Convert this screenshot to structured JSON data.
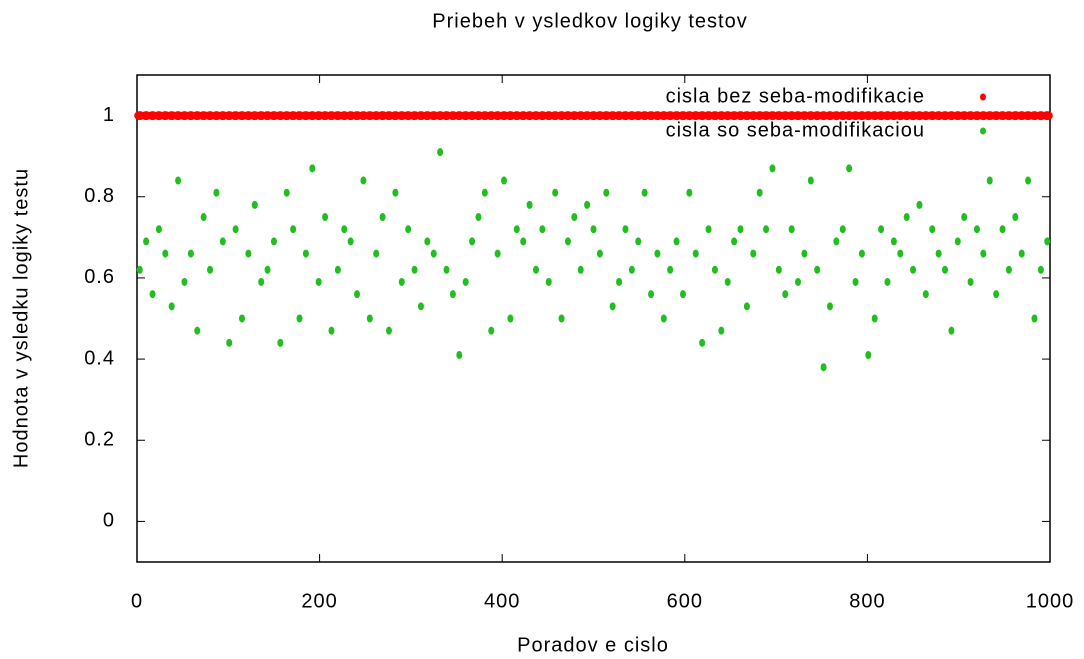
{
  "chart_data": {
    "type": "scatter",
    "title": "Priebeh v ysledkov logiky testov",
    "x_label": "Poradov e cislo",
    "y_label": "Hodnota v ysledku logiky testu",
    "xlim": [
      0,
      1000
    ],
    "ylim": [
      -0.1,
      1.1
    ],
    "xticks": [
      0,
      200,
      400,
      600,
      800,
      1000
    ],
    "yticks": [
      0,
      0.2,
      0.4,
      0.6,
      0.8,
      1
    ],
    "legend": "upper right",
    "x": [
      3,
      10,
      17,
      24,
      31,
      38,
      45,
      52,
      59,
      66,
      73,
      80,
      87,
      94,
      101,
      108,
      115,
      122,
      129,
      136,
      143,
      150,
      157,
      164,
      171,
      178,
      185,
      192,
      199,
      206,
      213,
      220,
      227,
      234,
      241,
      248,
      255,
      262,
      269,
      276,
      283,
      290,
      297,
      304,
      311,
      318,
      325,
      332,
      339,
      346,
      353,
      360,
      367,
      374,
      381,
      388,
      395,
      402,
      409,
      416,
      423,
      430,
      437,
      444,
      451,
      458,
      465,
      472,
      479,
      486,
      493,
      500,
      507,
      514,
      521,
      528,
      535,
      542,
      549,
      556,
      563,
      570,
      577,
      584,
      591,
      598,
      605,
      612,
      619,
      626,
      633,
      640,
      647,
      654,
      661,
      668,
      675,
      682,
      689,
      696,
      703,
      710,
      717,
      724,
      731,
      738,
      745,
      752,
      759,
      766,
      773,
      780,
      787,
      794,
      801,
      808,
      815,
      822,
      829,
      836,
      843,
      850,
      857,
      864,
      871,
      878,
      885,
      892,
      899,
      906,
      913,
      920,
      927,
      934,
      941,
      948,
      955,
      962,
      969,
      976,
      983,
      990,
      997
    ],
    "series": [
      {
        "name": "cisla bez seba-modifikacie",
        "color": "#ff0000",
        "values": [
          1,
          1,
          1,
          1,
          1,
          1,
          1,
          1,
          1,
          1,
          1,
          1,
          1,
          1,
          1,
          1,
          1,
          1,
          1,
          1,
          1,
          1,
          1,
          1,
          1,
          1,
          1,
          1,
          1,
          1,
          1,
          1,
          1,
          1,
          1,
          1,
          1,
          1,
          1,
          1,
          1,
          1,
          1,
          1,
          1,
          1,
          1,
          1,
          1,
          1,
          1,
          1,
          1,
          1,
          1,
          1,
          1,
          1,
          1,
          1,
          1,
          1,
          1,
          1,
          1,
          1,
          1,
          1,
          1,
          1,
          1,
          1,
          1,
          1,
          1,
          1,
          1,
          1,
          1,
          1,
          1,
          1,
          1,
          1,
          1,
          1,
          1,
          1,
          1,
          1,
          1,
          1,
          1,
          1,
          1,
          1,
          1,
          1,
          1,
          1,
          1,
          1,
          1,
          1,
          1,
          1,
          1,
          1,
          1,
          1,
          1,
          1,
          1,
          1,
          1,
          1,
          1,
          1,
          1,
          1,
          1,
          1,
          1,
          1,
          1,
          1,
          1,
          1,
          1,
          1,
          1,
          1,
          1,
          1,
          1,
          1,
          1,
          1,
          1,
          1,
          1,
          1,
          1
        ]
      },
      {
        "name": "cisla so seba-modifikaciou",
        "color": "#1fbf1f",
        "values": [
          0.62,
          0.69,
          0.56,
          0.72,
          0.66,
          0.53,
          0.84,
          0.59,
          0.66,
          0.47,
          0.75,
          0.62,
          0.81,
          0.69,
          0.44,
          0.72,
          0.5,
          0.66,
          0.78,
          0.59,
          0.62,
          0.69,
          0.44,
          0.81,
          0.72,
          0.5,
          0.66,
          0.87,
          0.59,
          0.75,
          0.47,
          0.62,
          0.72,
          0.69,
          0.56,
          0.84,
          0.5,
          0.66,
          0.75,
          0.47,
          0.81,
          0.59,
          0.72,
          0.62,
          0.53,
          0.69,
          0.66,
          0.91,
          0.62,
          0.56,
          0.41,
          0.59,
          0.69,
          0.75,
          0.81,
          0.47,
          0.66,
          0.84,
          0.5,
          0.72,
          0.69,
          0.78,
          0.62,
          0.72,
          0.59,
          0.81,
          0.5,
          0.69,
          0.75,
          0.62,
          0.78,
          0.72,
          0.66,
          0.81,
          0.53,
          0.59,
          0.72,
          0.62,
          0.69,
          0.81,
          0.56,
          0.66,
          0.5,
          0.62,
          0.69,
          0.56,
          0.81,
          0.66,
          0.44,
          0.72,
          0.62,
          0.47,
          0.59,
          0.69,
          0.72,
          0.53,
          0.66,
          0.81,
          0.72,
          0.87,
          0.62,
          0.56,
          0.72,
          0.59,
          0.66,
          0.84,
          0.62,
          0.38,
          0.53,
          0.69,
          0.72,
          0.87,
          0.59,
          0.66,
          0.41,
          0.5,
          0.72,
          0.59,
          0.69,
          0.66,
          0.75,
          0.62,
          0.78,
          0.56,
          0.72,
          0.66,
          0.62,
          0.47,
          0.69,
          0.75,
          0.59,
          0.72,
          0.66,
          0.84,
          0.56,
          0.72,
          0.62,
          0.75,
          0.66,
          0.84,
          0.5,
          0.62,
          0.69
        ]
      }
    ]
  }
}
